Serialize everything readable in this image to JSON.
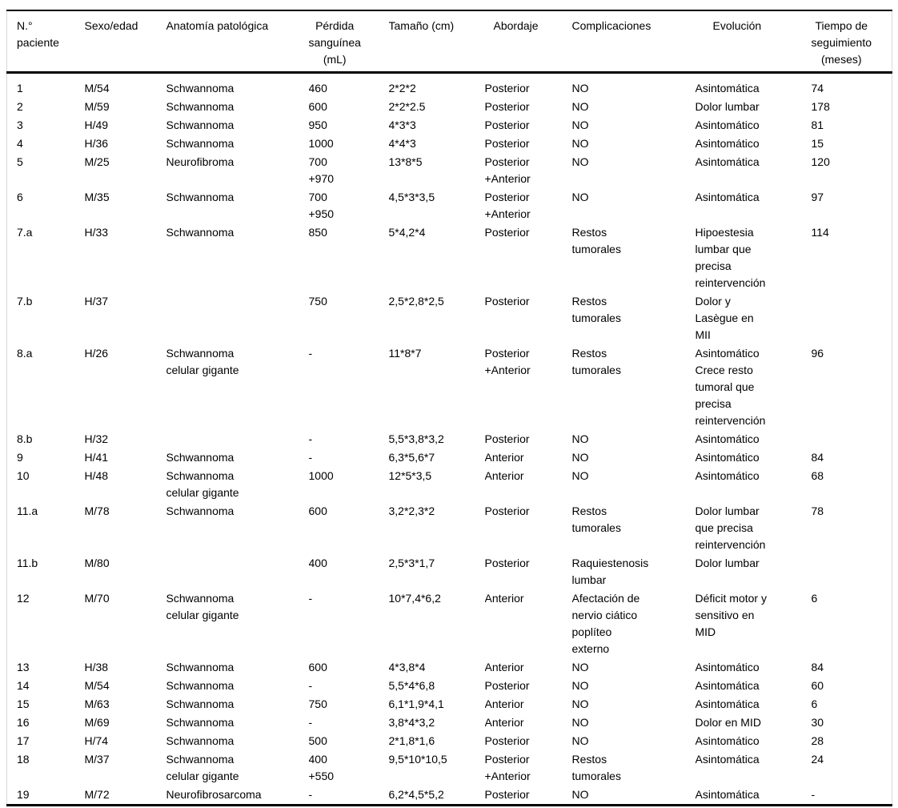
{
  "colors": {
    "background": "#ffffff",
    "text": "#000000",
    "rule": "#000000",
    "side_border": "#d9d9d9"
  },
  "table": {
    "columns": [
      {
        "key": "n-paciente",
        "label": "N.°\npaciente"
      },
      {
        "key": "sexo-edad",
        "label": "Sexo/edad"
      },
      {
        "key": "anatomia-patologica",
        "label": "Anatomía patológica"
      },
      {
        "key": "perdida-sanguinea",
        "label": "Pérdida\nsanguínea\n(mL)"
      },
      {
        "key": "tamano",
        "label": "Tamaño (cm)"
      },
      {
        "key": "abordaje",
        "label": "Abordaje"
      },
      {
        "key": "complicaciones",
        "label": "Complicaciones"
      },
      {
        "key": "evolucion",
        "label": "Evolución"
      },
      {
        "key": "tiempo-seguimiento",
        "label": "Tiempo de\nseguimiento\n(meses)"
      }
    ],
    "rows": [
      [
        "1",
        "M/54",
        "Schwannoma",
        "460",
        "2*2*2",
        "Posterior",
        "NO",
        "Asintomática",
        "74"
      ],
      [
        "2",
        "M/59",
        "Schwannoma",
        "600",
        "2*2*2.5",
        "Posterior",
        "NO",
        "Dolor lumbar",
        "178"
      ],
      [
        "3",
        "H/49",
        "Schwannoma",
        "950",
        "4*3*3",
        "Posterior",
        "NO",
        "Asintomático",
        "81"
      ],
      [
        "4",
        "H/36",
        "Schwannoma",
        "1000",
        "4*4*3",
        "Posterior",
        "NO",
        "Asintomático",
        "15"
      ],
      [
        "5",
        "M/25",
        "Neurofibroma",
        "700\n+970",
        "13*8*5",
        "Posterior\n+Anterior",
        "NO",
        "Asintomática",
        "120"
      ],
      [
        "6",
        "M/35",
        "Schwannoma",
        "700\n+950",
        "4,5*3*3,5",
        "Posterior\n+Anterior",
        "NO",
        "Asintomática",
        "97"
      ],
      [
        "7.a",
        "H/33",
        "Schwannoma",
        "850",
        "5*4,2*4",
        "Posterior",
        "Restos\ntumorales",
        "Hipoestesia\nlumbar que\nprecisa\nreintervención",
        "114"
      ],
      [
        "7.b",
        "H/37",
        "",
        "750",
        "2,5*2,8*2,5",
        "Posterior",
        "Restos\ntumorales",
        "Dolor y\nLasègue en\nMII",
        ""
      ],
      [
        "8.a",
        "H/26",
        "Schwannoma\ncelular gigante",
        "-",
        "11*8*7",
        "Posterior\n+Anterior",
        "Restos\ntumorales",
        "Asintomático\nCrece resto\ntumoral que\nprecisa\nreintervención",
        "96"
      ],
      [
        "8.b",
        "H/32",
        "",
        "-",
        "5,5*3,8*3,2",
        "Posterior",
        "NO",
        "Asintomático",
        ""
      ],
      [
        "9",
        "H/41",
        "Schwannoma",
        "-",
        "6,3*5,6*7",
        "Anterior",
        "NO",
        "Asintomático",
        "84"
      ],
      [
        "10",
        "H/48",
        "Schwannoma\ncelular gigante",
        "1000",
        "12*5*3,5",
        "Anterior",
        "NO",
        "Asintomático",
        "68"
      ],
      [
        "11.a",
        "M/78",
        "Schwannoma",
        "600",
        "3,2*2,3*2",
        "Posterior",
        "Restos\ntumorales",
        "Dolor lumbar\nque precisa\nreintervención",
        "78"
      ],
      [
        "11.b",
        "M/80",
        "",
        "400",
        "2,5*3*1,7",
        "Posterior",
        "Raquiestenosis\nlumbar",
        "Dolor lumbar",
        ""
      ],
      [
        "12",
        "M/70",
        "Schwannoma\ncelular gigante",
        "-",
        "10*7,4*6,2",
        "Anterior",
        "Afectación de\nnervio ciático\npoplíteo\nexterno",
        "Déficit motor y\nsensitivo en\nMID",
        "6"
      ],
      [
        "13",
        "H/38",
        "Schwannoma",
        "600",
        "4*3,8*4",
        "Anterior",
        "NO",
        "Asintomático",
        "84"
      ],
      [
        "14",
        "M/54",
        "Schwannoma",
        "-",
        "5,5*4*6,8",
        "Posterior",
        "NO",
        "Asintomática",
        "60"
      ],
      [
        "15",
        "M/63",
        "Schwannoma",
        "750",
        "6,1*1,9*4,1",
        "Anterior",
        "NO",
        "Asintomática",
        "6"
      ],
      [
        "16",
        "M/69",
        "Schwannoma",
        "-",
        "3,8*4*3,2",
        "Anterior",
        "NO",
        "Dolor en MID",
        "30"
      ],
      [
        "17",
        "H/74",
        "Schwannoma",
        "500",
        "2*1,8*1,6",
        "Posterior",
        "NO",
        "Asintomático",
        "28"
      ],
      [
        "18",
        "M/37",
        "Schwannoma\ncelular gigante",
        "400\n+550",
        "9,5*10*10,5",
        "Posterior\n+Anterior",
        "Restos\ntumorales",
        "Asintomática",
        "24"
      ],
      [
        "19",
        "M/72",
        "Neurofibrosarcoma",
        "-",
        "6,2*4,5*5,2",
        "Posterior",
        "NO",
        "Asintomática",
        "-"
      ]
    ]
  }
}
